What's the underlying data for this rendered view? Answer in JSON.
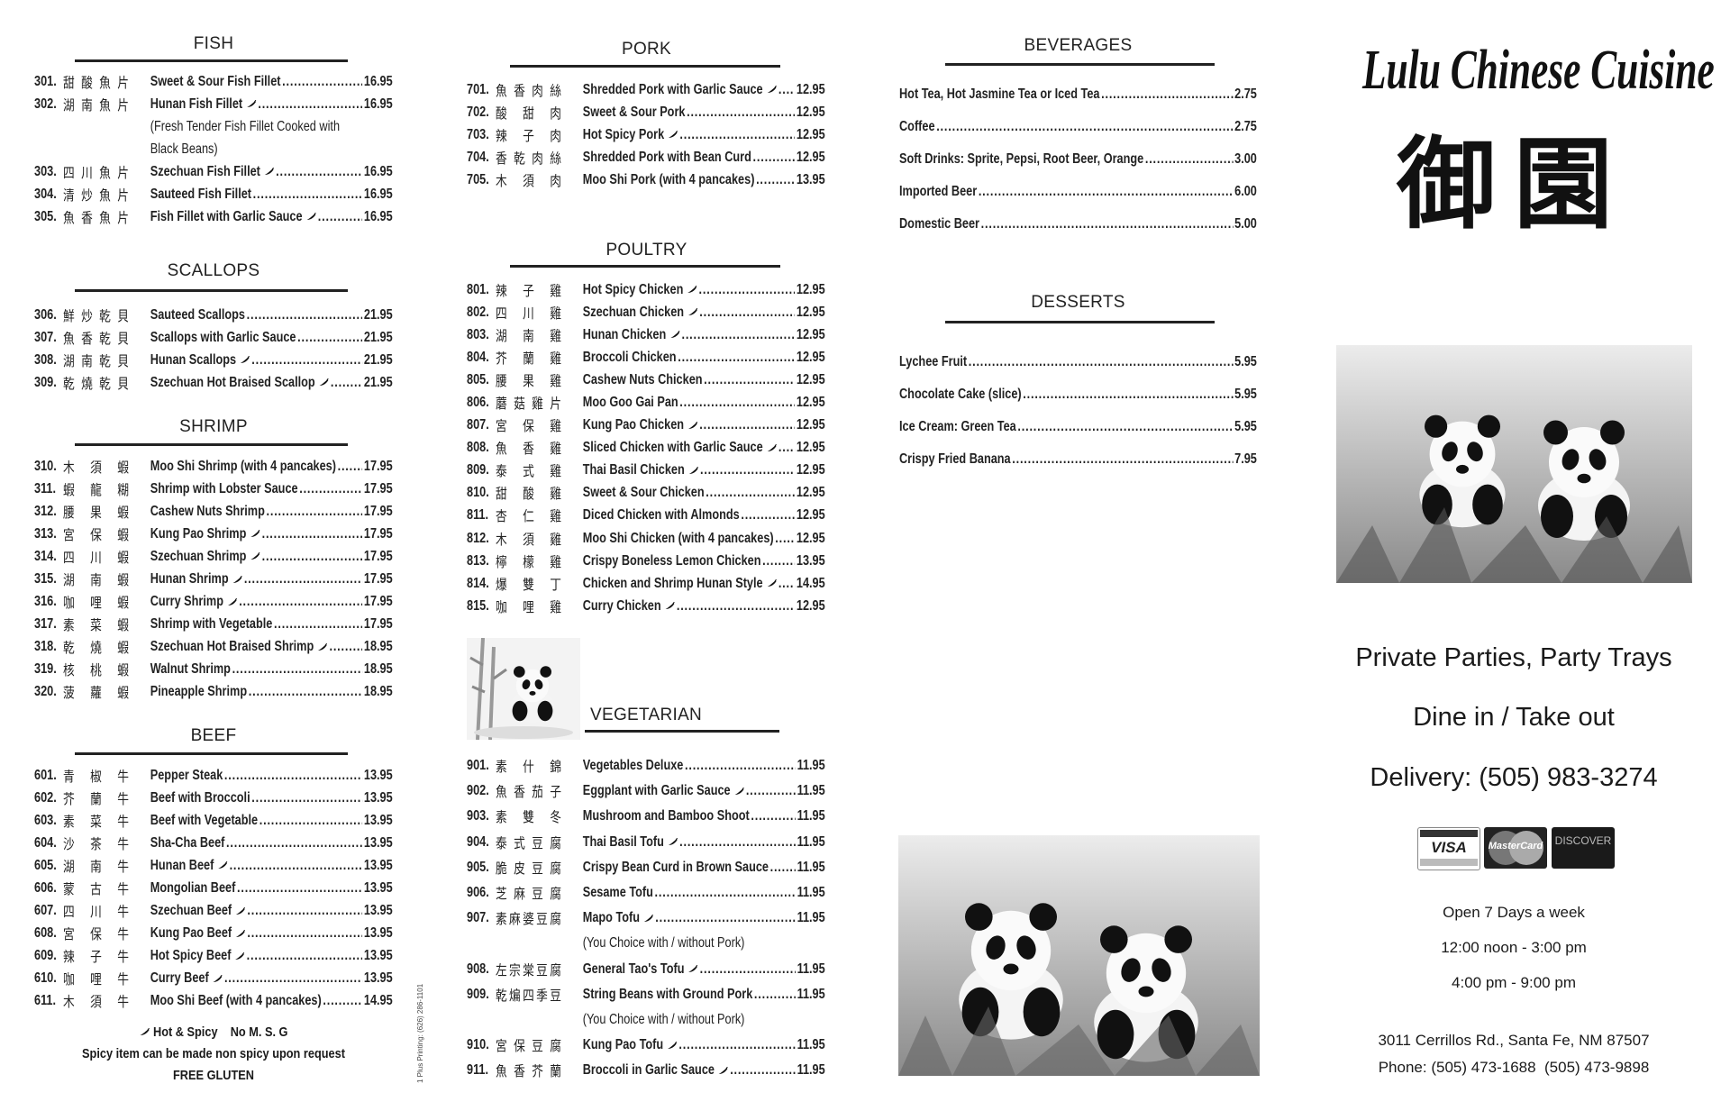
{
  "fish": {
    "title": "FISH",
    "items": [
      {
        "num": "301.",
        "cn": "甜酸魚片",
        "en": "Sweet & Sour Fish Fillet",
        "price": "16.95",
        "spicy": false
      },
      {
        "num": "302.",
        "cn": "湖南魚片",
        "en": "Hunan Fish Fillet",
        "price": "16.95",
        "spicy": true,
        "desc": [
          "(Fresh Tender Fish Fillet Cooked with",
          "Black Beans)"
        ]
      },
      {
        "num": "303.",
        "cn": "四川魚片",
        "en": "Szechuan Fish Fillet",
        "price": "16.95",
        "spicy": true
      },
      {
        "num": "304.",
        "cn": "清炒魚片",
        "en": "Sauteed Fish Fillet",
        "price": "16.95",
        "spicy": false
      },
      {
        "num": "305.",
        "cn": "魚香魚片",
        "en": "Fish Fillet with Garlic Sauce",
        "price": "16.95",
        "spicy": true
      }
    ]
  },
  "scallops": {
    "title": "SCALLOPS",
    "items": [
      {
        "num": "306.",
        "cn": "鮮炒乾貝",
        "en": "Sauteed Scallops",
        "price": "21.95",
        "spicy": false
      },
      {
        "num": "307.",
        "cn": "魚香乾貝",
        "en": "Scallops with Garlic Sauce",
        "price": "21.95",
        "spicy": false
      },
      {
        "num": "308.",
        "cn": "湖南乾貝",
        "en": "Hunan Scallops",
        "price": "21.95",
        "spicy": true
      },
      {
        "num": "309.",
        "cn": "乾燒乾貝",
        "en": "Szechuan Hot Braised Scallop",
        "price": "21.95",
        "spicy": true
      }
    ]
  },
  "shrimp": {
    "title": "SHRIMP",
    "items": [
      {
        "num": "310.",
        "cn": "木須蝦",
        "en": "Moo Shi Shrimp (with 4 pancakes)",
        "price": "17.95",
        "spicy": false
      },
      {
        "num": "311.",
        "cn": "蝦龍糊",
        "en": "Shrimp with Lobster Sauce",
        "price": "17.95",
        "spicy": false
      },
      {
        "num": "312.",
        "cn": "腰果蝦",
        "en": "Cashew Nuts Shrimp",
        "price": "17.95",
        "spicy": false
      },
      {
        "num": "313.",
        "cn": "宮保蝦",
        "en": "Kung Pao Shrimp",
        "price": "17.95",
        "spicy": true
      },
      {
        "num": "314.",
        "cn": "四川蝦",
        "en": "Szechuan Shrimp",
        "price": "17.95",
        "spicy": true
      },
      {
        "num": "315.",
        "cn": "湖南蝦",
        "en": "Hunan Shrimp",
        "price": "17.95",
        "spicy": true
      },
      {
        "num": "316.",
        "cn": "咖哩蝦",
        "en": "Curry Shrimp",
        "price": "17.95",
        "spicy": true
      },
      {
        "num": "317.",
        "cn": "素菜蝦",
        "en": "Shrimp with Vegetable",
        "price": "17.95",
        "spicy": false
      },
      {
        "num": "318.",
        "cn": "乾燒蝦",
        "en": "Szechuan Hot Braised Shrimp",
        "price": "18.95",
        "spicy": true
      },
      {
        "num": "319.",
        "cn": "核桃蝦",
        "en": "Walnut Shrimp",
        "price": "18.95",
        "spicy": false
      },
      {
        "num": "320.",
        "cn": "菠蘿蝦",
        "en": "Pineapple Shrimp",
        "price": "18.95",
        "spicy": false
      }
    ]
  },
  "beef": {
    "title": "BEEF",
    "items": [
      {
        "num": "601.",
        "cn": "青椒牛",
        "en": "Pepper Steak",
        "price": "13.95",
        "spicy": false
      },
      {
        "num": "602.",
        "cn": "芥蘭牛",
        "en": "Beef with Broccoli",
        "price": "13.95",
        "spicy": false
      },
      {
        "num": "603.",
        "cn": "素菜牛",
        "en": "Beef with Vegetable",
        "price": "13.95",
        "spicy": false
      },
      {
        "num": "604.",
        "cn": "沙茶牛",
        "en": "Sha-Cha Beef",
        "price": "13.95",
        "spicy": false
      },
      {
        "num": "605.",
        "cn": "湖南牛",
        "en": "Hunan Beef",
        "price": "13.95",
        "spicy": true
      },
      {
        "num": "606.",
        "cn": "蒙古牛",
        "en": "Mongolian Beef",
        "price": "13.95",
        "spicy": false
      },
      {
        "num": "607.",
        "cn": "四川牛",
        "en": "Szechuan Beef",
        "price": "13.95",
        "spicy": true
      },
      {
        "num": "608.",
        "cn": "宮保牛",
        "en": "Kung Pao Beef",
        "price": "13.95",
        "spicy": true
      },
      {
        "num": "609.",
        "cn": "辣子牛",
        "en": "Hot Spicy Beef",
        "price": "13.95",
        "spicy": true
      },
      {
        "num": "610.",
        "cn": "咖哩牛",
        "en": "Curry Beef",
        "price": "13.95",
        "spicy": true
      },
      {
        "num": "611.",
        "cn": "木須牛",
        "en": "Moo Shi Beef (with 4 pancakes)",
        "price": "14.95",
        "spicy": false
      }
    ]
  },
  "legend": {
    "spicy": "Hot & Spicy",
    "msg": "No M. S. G",
    "note": "Spicy item can be made non spicy upon request",
    "gluten": "FREE GLUTEN"
  },
  "printer_credit": "1 Plus Printing: (626) 286-1101",
  "pork": {
    "title": "PORK",
    "items": [
      {
        "num": "701.",
        "cn": "魚香肉絲",
        "en": "Shredded Pork with Garlic Sauce",
        "price": "12.95",
        "spicy": true
      },
      {
        "num": "702.",
        "cn": "酸甜肉",
        "en": "Sweet & Sour Pork",
        "price": "12.95",
        "spicy": false
      },
      {
        "num": "703.",
        "cn": "辣子肉",
        "en": "Hot Spicy Pork",
        "price": "12.95",
        "spicy": true
      },
      {
        "num": "704.",
        "cn": "香乾肉絲",
        "en": "Shredded Pork with Bean Curd",
        "price": "12.95",
        "spicy": false
      },
      {
        "num": "705.",
        "cn": "木須肉",
        "en": "Moo Shi Pork (with 4 pancakes)",
        "price": "13.95",
        "spicy": false
      }
    ]
  },
  "poultry": {
    "title": "POULTRY",
    "items": [
      {
        "num": "801.",
        "cn": "辣子雞",
        "en": "Hot Spicy Chicken",
        "price": "12.95",
        "spicy": true
      },
      {
        "num": "802.",
        "cn": "四川雞",
        "en": "Szechuan Chicken",
        "price": "12.95",
        "spicy": true
      },
      {
        "num": "803.",
        "cn": "湖南雞",
        "en": "Hunan Chicken",
        "price": "12.95",
        "spicy": true
      },
      {
        "num": "804.",
        "cn": "芥蘭雞",
        "en": "Broccoli Chicken",
        "price": "12.95",
        "spicy": false
      },
      {
        "num": "805.",
        "cn": "腰果雞",
        "en": "Cashew Nuts Chicken",
        "price": "12.95",
        "spicy": false
      },
      {
        "num": "806.",
        "cn": "蘑菇雞片",
        "en": "Moo Goo Gai Pan",
        "price": "12.95",
        "spicy": false
      },
      {
        "num": "807.",
        "cn": "宮保雞",
        "en": "Kung Pao Chicken",
        "price": "12.95",
        "spicy": true
      },
      {
        "num": "808.",
        "cn": "魚香雞",
        "en": "Sliced Chicken with Garlic Sauce",
        "price": "12.95",
        "spicy": true
      },
      {
        "num": "809.",
        "cn": "泰式雞",
        "en": "Thai Basil Chicken",
        "price": "12.95",
        "spicy": true
      },
      {
        "num": "810.",
        "cn": "甜酸雞",
        "en": "Sweet & Sour Chicken",
        "price": "12.95",
        "spicy": false
      },
      {
        "num": "811.",
        "cn": "杏仁雞",
        "en": "Diced Chicken with Almonds",
        "price": "12.95",
        "spicy": false
      },
      {
        "num": "812.",
        "cn": "木須雞",
        "en": "Moo Shi Chicken (with 4 pancakes)",
        "price": "12.95",
        "spicy": false
      },
      {
        "num": "813.",
        "cn": "檸檬雞",
        "en": "Crispy Boneless Lemon Chicken",
        "price": "13.95",
        "spicy": false
      },
      {
        "num": "814.",
        "cn": "爆雙丁",
        "en": "Chicken and Shrimp Hunan Style",
        "price": "14.95",
        "spicy": true
      },
      {
        "num": "815.",
        "cn": "咖哩雞",
        "en": "Curry Chicken",
        "price": "12.95",
        "spicy": true
      }
    ]
  },
  "vegetarian": {
    "title": "VEGETARIAN",
    "items": [
      {
        "num": "901.",
        "cn": "素什錦",
        "en": "Vegetables Deluxe",
        "price": "11.95",
        "spicy": false
      },
      {
        "num": "902.",
        "cn": "魚香茄子",
        "en": "Eggplant with Garlic Sauce",
        "price": "11.95",
        "spicy": true
      },
      {
        "num": "903.",
        "cn": "素雙冬",
        "en": "Mushroom and Bamboo Shoot",
        "price": "11.95",
        "spicy": false
      },
      {
        "num": "904.",
        "cn": "泰式豆腐",
        "en": "Thai Basil Tofu",
        "price": "11.95",
        "spicy": true
      },
      {
        "num": "905.",
        "cn": "脆皮豆腐",
        "en": "Crispy Bean Curd in Brown Sauce",
        "price": "11.95",
        "spicy": false
      },
      {
        "num": "906.",
        "cn": "芝麻豆腐",
        "en": "Sesame Tofu",
        "price": "11.95",
        "spicy": false
      },
      {
        "num": "907.",
        "cn": "素麻婆豆腐",
        "en": "Mapo Tofu",
        "price": "11.95",
        "spicy": true,
        "desc": [
          "(You Choice with / without Pork)"
        ]
      },
      {
        "num": "908.",
        "cn": "左宗棠豆腐",
        "en": "General Tao's Tofu",
        "price": "11.95",
        "spicy": true
      },
      {
        "num": "909.",
        "cn": "乾煸四季豆",
        "en": "String Beans with Ground Pork",
        "price": "11.95",
        "spicy": false,
        "desc": [
          "(You Choice with / without Pork)"
        ]
      },
      {
        "num": "910.",
        "cn": "宮保豆腐",
        "en": "Kung Pao Tofu",
        "price": "11.95",
        "spicy": true
      },
      {
        "num": "911.",
        "cn": "魚香芥蘭",
        "en": "Broccoli in Garlic Sauce",
        "price": "11.95",
        "spicy": true
      }
    ]
  },
  "beverages": {
    "title": "BEVERAGES",
    "items": [
      {
        "en": "Hot Tea, Hot Jasmine Tea or Iced Tea",
        "price": "2.75"
      },
      {
        "en": "Coffee",
        "price": "2.75"
      },
      {
        "en": "Soft Drinks: Sprite, Pepsi, Root Beer, Orange",
        "price": "3.00"
      },
      {
        "en": "Imported Beer",
        "price": "6.00"
      },
      {
        "en": "Domestic Beer",
        "price": "5.00"
      }
    ]
  },
  "desserts": {
    "title": "DESSERTS",
    "items": [
      {
        "en": "Lychee Fruit",
        "price": "5.95"
      },
      {
        "en": "Chocolate Cake (slice)",
        "price": "5.95"
      },
      {
        "en": "Ice Cream: Green Tea",
        "price": "5.95"
      },
      {
        "en": "Crispy Fried Banana",
        "price": "7.95"
      }
    ]
  },
  "cover": {
    "title": "Lulu Chinese Cuisine",
    "chinese_logo": "御園",
    "services": "Private Parties, Party Trays",
    "dining": "Dine in / Take out",
    "delivery": "Delivery: (505) 983-3274",
    "cards": [
      "VISA",
      "MasterCard",
      "DISCOVER"
    ],
    "hours_title": "Open 7 Days a week",
    "hours_lunch": "12:00 noon - 3:00 pm",
    "hours_dinner": "4:00 pm - 9:00 pm",
    "address": "3011 Cerrillos Rd., Santa Fe, NM 87507",
    "phone": "Phone: (505) 473-1688  (505) 473-9898"
  },
  "icons": {
    "spicy": "chili-pepper-icon"
  },
  "colors": {
    "ink": "#222222",
    "paper": "#ffffff"
  }
}
